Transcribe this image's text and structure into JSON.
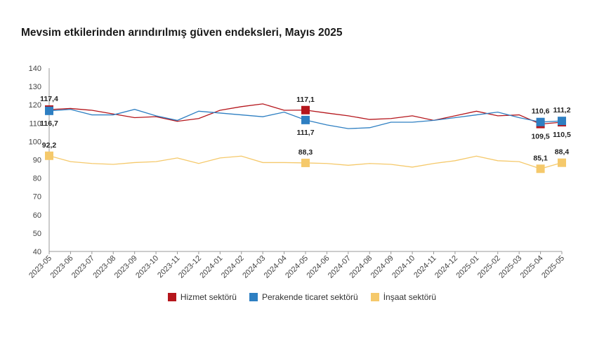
{
  "chart_data": {
    "type": "line",
    "title": "Mevsim etkilerinden arındırılmış güven endeksleri, Mayıs 2025",
    "categories": [
      "2023-05",
      "2023-06",
      "2023-07",
      "2023-08",
      "2023-09",
      "2023-10",
      "2023-11",
      "2023-12",
      "2024-01",
      "2024-02",
      "2024-03",
      "2024-04",
      "2024-05",
      "2024-06",
      "2024-07",
      "2024-08",
      "2024-09",
      "2024-10",
      "2024-11",
      "2024-12",
      "2025-01",
      "2025-02",
      "2025-03",
      "2025-04",
      "2025-05"
    ],
    "ylim": [
      40,
      140
    ],
    "yticks": [
      40,
      50,
      60,
      70,
      80,
      90,
      100,
      110,
      120,
      130,
      140
    ],
    "series": [
      {
        "name": "Hizmet sektörü",
        "color": "#b5161c",
        "values": [
          117.4,
          118,
          117,
          115,
          113,
          113.5,
          111,
          112.5,
          117,
          119,
          120.5,
          117,
          117.1,
          115.5,
          114,
          112,
          112.5,
          114,
          111.5,
          114,
          116.5,
          114,
          114.5,
          109.5,
          110.5
        ],
        "markers": [
          {
            "index": 0,
            "label": "117,4",
            "pos": "above"
          },
          {
            "index": 12,
            "label": "117,1",
            "pos": "above"
          },
          {
            "index": 23,
            "label": "109,5",
            "pos": "below"
          },
          {
            "index": 24,
            "label": "110,5",
            "pos": "below"
          }
        ]
      },
      {
        "name": "Perakende ticaret sektörü",
        "color": "#2e7fc2",
        "values": [
          116.7,
          117.5,
          114.5,
          114.5,
          117.5,
          114,
          111.5,
          116.5,
          115.5,
          114.5,
          113.5,
          116,
          111.7,
          109,
          107,
          107.5,
          110.5,
          110.5,
          111.5,
          113,
          114.5,
          116,
          113,
          110.6,
          111.2
        ],
        "markers": [
          {
            "index": 0,
            "label": "116,7",
            "pos": "below"
          },
          {
            "index": 12,
            "label": "111,7",
            "pos": "below"
          },
          {
            "index": 23,
            "label": "110,6",
            "pos": "above"
          },
          {
            "index": 24,
            "label": "111,2",
            "pos": "above"
          }
        ]
      },
      {
        "name": "İnşaat sektörü",
        "color": "#f5c96b",
        "values": [
          92.2,
          89,
          88,
          87.5,
          88.5,
          89,
          91,
          88,
          91,
          92,
          88.5,
          88.5,
          88.3,
          88,
          87,
          88,
          87.5,
          86,
          88,
          89.5,
          92,
          89.5,
          89,
          85.1,
          88.4
        ],
        "markers": [
          {
            "index": 0,
            "label": "92,2",
            "pos": "above"
          },
          {
            "index": 12,
            "label": "88,3",
            "pos": "above"
          },
          {
            "index": 23,
            "label": "85,1",
            "pos": "above"
          },
          {
            "index": 24,
            "label": "88,4",
            "pos": "above"
          }
        ]
      }
    ]
  }
}
